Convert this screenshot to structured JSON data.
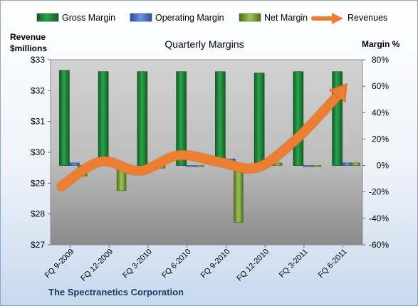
{
  "chart_data": {
    "type": "bar",
    "title": "Quarterly Margins",
    "categories": [
      "FQ 9-2009",
      "FQ 12-2009",
      "FQ 3-2010",
      "FQ 6-2010",
      "FQ 9-2010",
      "FQ 12-2010",
      "FQ 3-2011",
      "FQ 6-2011"
    ],
    "series": [
      {
        "name": "Gross Margin",
        "axis": "right",
        "kind": "bar",
        "color": "#1e8a3c",
        "values": [
          72,
          71,
          71,
          71,
          71,
          70,
          71,
          71
        ]
      },
      {
        "name": "Operating Margin",
        "axis": "right",
        "kind": "bar",
        "color": "#4f74c9",
        "values": [
          2,
          1,
          -2,
          0,
          5,
          5,
          0,
          2
        ]
      },
      {
        "name": "Net Margin",
        "axis": "right",
        "kind": "bar",
        "color": "#7fa63d",
        "values": [
          -8,
          -19,
          -2,
          0,
          -43,
          2,
          0,
          2
        ]
      },
      {
        "name": "Revenues",
        "axis": "left",
        "kind": "line",
        "color": "#ed7d31",
        "values": [
          28.9,
          29.7,
          29.4,
          29.9,
          29.7,
          29.5,
          30.4,
          32.1
        ]
      }
    ],
    "left_axis": {
      "label_line1": "Revenue",
      "label_line2": "$millions",
      "min": 27,
      "max": 33,
      "step": 1,
      "ticks": [
        "$27",
        "$28",
        "$29",
        "$30",
        "$31",
        "$32",
        "$33"
      ]
    },
    "right_axis": {
      "label": "Margin %",
      "min": -60,
      "max": 80,
      "step": 20,
      "ticks": [
        "-60%",
        "-40%",
        "-20%",
        "0%",
        "20%",
        "40%",
        "60%",
        "80%"
      ]
    },
    "legend": {
      "position": "top"
    },
    "grid": false,
    "company": "The Spectranetics Corporation"
  }
}
